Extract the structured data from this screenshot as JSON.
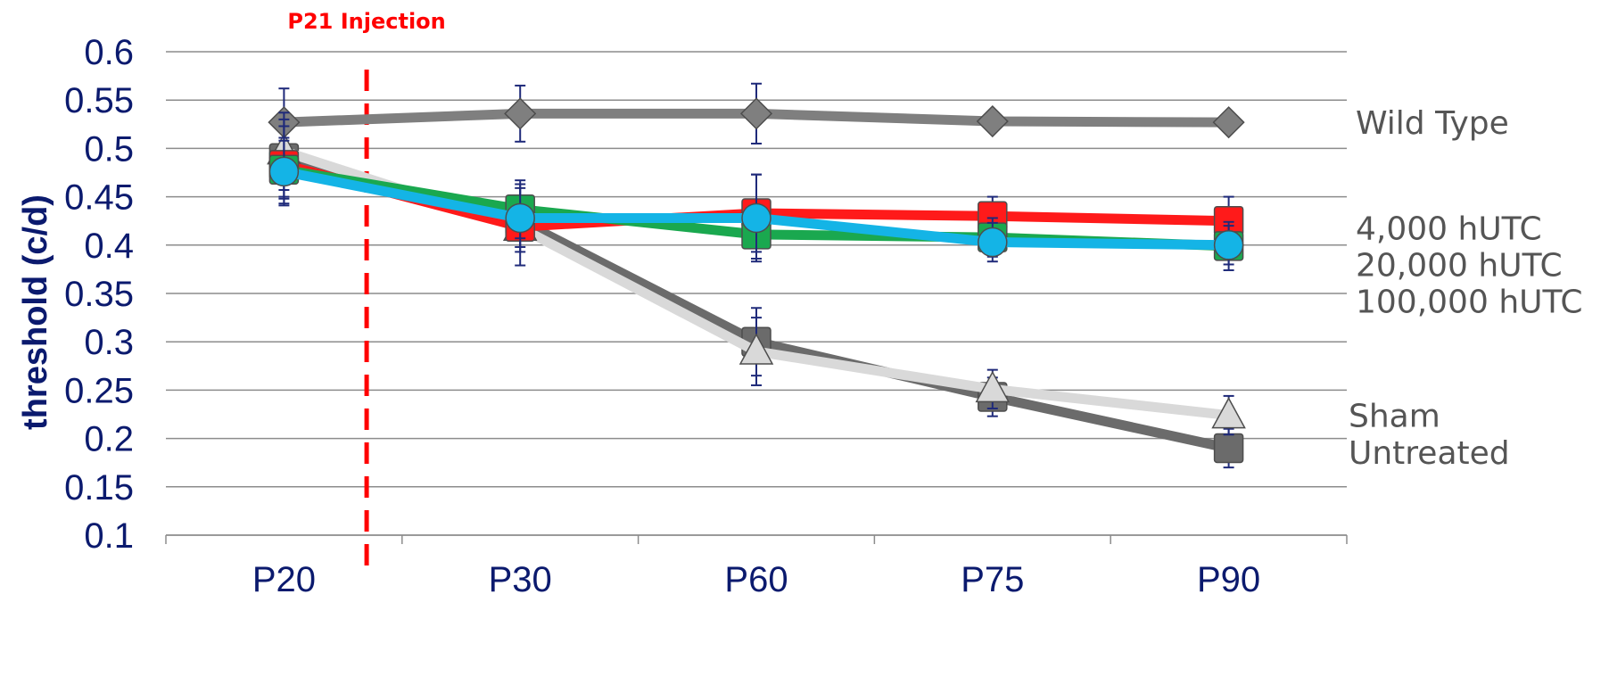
{
  "chart_data": {
    "type": "line",
    "title": "",
    "xlabel": "",
    "ylabel": "threshold (c/d)",
    "categories": [
      "P20",
      "P30",
      "P60",
      "P75",
      "P90"
    ],
    "ylim": [
      0.1,
      0.6
    ],
    "yticks": [
      "0.1",
      "0.15",
      "0.2",
      "0.25",
      "0.3",
      "0.35",
      "0.4",
      "0.45",
      "0.5",
      "0.55",
      "0.6"
    ],
    "grid": "horizontal",
    "annotation": {
      "text": "P21 Injection",
      "color": "#ff0000",
      "x_position": "between P20 and P30"
    },
    "series": [
      {
        "name": "Wild Type",
        "marker": "diamond",
        "color": "#7f7f7f",
        "values": [
          0.527,
          0.536,
          0.536,
          0.528,
          0.527
        ],
        "errors": [
          0.035,
          0.029,
          0.031,
          0,
          0
        ]
      },
      {
        "name": "4,000 hUTC",
        "marker": "square",
        "color": "#ff1a1a",
        "values": [
          0.483,
          0.419,
          0.433,
          0.43,
          0.425
        ],
        "errors": [
          0.04,
          0.04,
          0.04,
          0.02,
          0.025
        ]
      },
      {
        "name": "20,000 hUTC",
        "marker": "square",
        "color": "#1aa84f",
        "values": [
          0.478,
          0.437,
          0.411,
          0.408,
          0.399
        ],
        "errors": [
          0.03,
          0.03,
          0.025,
          0.02,
          0.025
        ]
      },
      {
        "name": "100,000 hUTC",
        "marker": "circle",
        "color": "#14b4e6",
        "values": [
          0.476,
          0.428,
          0.428,
          0.403,
          0.4
        ],
        "errors": [
          0.035,
          0.035,
          0.045,
          0.02,
          0.02
        ]
      },
      {
        "name": "Sham",
        "marker": "triangle",
        "color": "#d9d9d9",
        "values": [
          0.497,
          0.418,
          0.29,
          0.251,
          0.224
        ],
        "errors": [
          0.04,
          0.02,
          0.035,
          0.02,
          0.02
        ]
      },
      {
        "name": "Untreated",
        "marker": "square",
        "color": "#6b6b6b",
        "values": [
          0.49,
          0.425,
          0.3,
          0.243,
          0.19
        ],
        "errors": [
          0.04,
          0.02,
          0.035,
          0.02,
          0.02
        ]
      }
    ],
    "series_labels": [
      {
        "text": "Wild Type",
        "value": 0.527
      },
      {
        "text": "4,000 hUTC",
        "value": 0.418
      },
      {
        "text": "20,000 hUTC",
        "value": 0.38
      },
      {
        "text": "100,000 hUTC",
        "value": 0.342
      },
      {
        "text": "Sham",
        "value": 0.224
      },
      {
        "text": "Untreated",
        "value": 0.186
      }
    ]
  }
}
